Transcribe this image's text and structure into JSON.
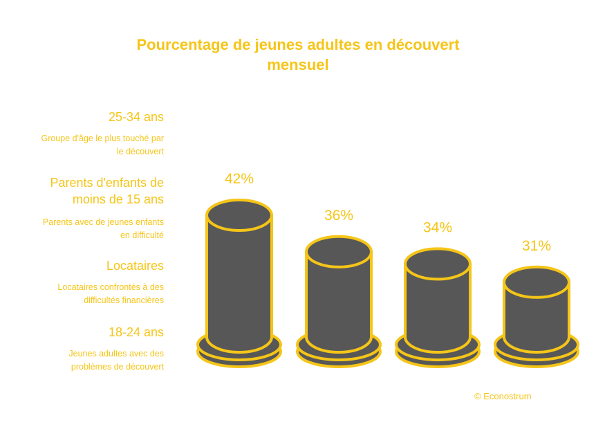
{
  "title_lines": [
    "Pourcentage de jeunes adultes en découvert",
    "mensuel"
  ],
  "categories": [
    {
      "title_lines": [
        "25-34 ans"
      ],
      "desc_lines": [
        "Groupe d'âge le plus touché par",
        "le découvert"
      ]
    },
    {
      "title_lines": [
        "Parents d'enfants de",
        "moins de 15 ans"
      ],
      "desc_lines": [
        "Parents avec de jeunes enfants",
        "en difficulté"
      ]
    },
    {
      "title_lines": [
        "Locataires"
      ],
      "desc_lines": [
        "Locataires confrontés à des",
        "difficultés financières"
      ]
    },
    {
      "title_lines": [
        "18-24 ans"
      ],
      "desc_lines": [
        "Jeunes adultes avec des",
        "problèmes de découvert"
      ]
    }
  ],
  "credit": "© Econostrum",
  "colors": {
    "accent": "#f5c518",
    "cylinder": "#575757",
    "background": "#ffffff"
  },
  "chart_data": {
    "type": "bar",
    "style": "3d-cylinders",
    "categories": [
      "25-34 ans",
      "Parents d'enfants de moins de 15 ans",
      "Locataires",
      "18-24 ans"
    ],
    "values": [
      42,
      36,
      34,
      31
    ],
    "data_labels": [
      "42%",
      "36%",
      "34%",
      "31%"
    ],
    "unit": "%",
    "legend": "left"
  }
}
